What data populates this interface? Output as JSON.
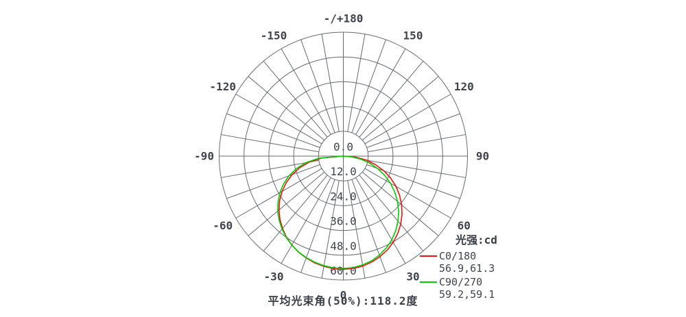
{
  "colors": {
    "grid": "#66696e",
    "label_text": "#3f434b",
    "c0_180": "#e81212",
    "c90_270": "#00cc00",
    "background": "#ffffff"
  },
  "legend": {
    "title": "光强:cd",
    "entries": [
      {
        "label": "C0/180",
        "values": "56.9,61.3",
        "color_key": "c0_180"
      },
      {
        "label": "C90/270",
        "values": "59.2,59.1",
        "color_key": "c90_270"
      }
    ]
  },
  "caption": "平均光束角(50%):118.2度",
  "chart_data": {
    "type": "line",
    "subtype": "polar-photometric",
    "title": "",
    "unit_label": "光强:cd",
    "orientation": "0-degrees-at-bottom, ±180 at top, negative angles left",
    "grid": true,
    "legend_position": "bottom-right",
    "r_axis": {
      "min": 0,
      "max": 60,
      "step": 12
    },
    "radial_ticks": [
      0,
      12,
      24,
      36,
      48,
      60
    ],
    "radial_tick_labels": [
      "0.0",
      "12.0",
      "24.0",
      "36.0",
      "48.0",
      "60.0"
    ],
    "angle_ticks": [
      {
        "deg": 180,
        "label": "-/+180"
      },
      {
        "deg": -150,
        "label": "-150"
      },
      {
        "deg": -120,
        "label": "-120"
      },
      {
        "deg": -90,
        "label": "-90"
      },
      {
        "deg": -60,
        "label": "-60"
      },
      {
        "deg": -30,
        "label": "-30"
      },
      {
        "deg": 0,
        "label": "0"
      },
      {
        "deg": 30,
        "label": "30"
      },
      {
        "deg": 60,
        "label": "60"
      },
      {
        "deg": 90,
        "label": "90"
      },
      {
        "deg": 120,
        "label": "120"
      },
      {
        "deg": 150,
        "label": "150"
      }
    ],
    "spoke_step_deg": 10,
    "angles_deg": [
      -90,
      -85,
      -80,
      -75,
      -70,
      -65,
      -60,
      -55,
      -50,
      -45,
      -40,
      -35,
      -30,
      -25,
      -20,
      -15,
      -10,
      -5,
      0,
      5,
      10,
      15,
      20,
      25,
      30,
      35,
      40,
      45,
      50,
      55,
      60,
      65,
      70,
      75,
      80,
      85,
      90
    ],
    "series": [
      {
        "name": "C0/180",
        "color_key": "c0_180",
        "peak_values_cd": "56.9,61.3",
        "intensity_cd": [
          0,
          10.4,
          16.7,
          21.9,
          26.4,
          30.5,
          34.2,
          37.6,
          40.6,
          43.3,
          45.7,
          47.9,
          49.7,
          51.3,
          52.5,
          53.5,
          54.2,
          54.7,
          54.8,
          54.6,
          54.1,
          53.1,
          51.8,
          50.2,
          48.2,
          45.8,
          43.1,
          40.1,
          36.8,
          33.2,
          29.4,
          25.2,
          20.9,
          16.2,
          11.3,
          6.1,
          0
        ]
      },
      {
        "name": "C90/270",
        "color_key": "c90_270",
        "peak_values_cd": "59.2,59.1",
        "intensity_cd": [
          0,
          12.0,
          18.4,
          23.5,
          28.0,
          31.9,
          35.4,
          38.5,
          41.4,
          43.9,
          46.1,
          48.1,
          49.8,
          51.2,
          52.3,
          53.2,
          53.9,
          54.3,
          54.4,
          54.2,
          53.5,
          52.5,
          51.0,
          49.1,
          46.8,
          44.1,
          41.1,
          37.8,
          34.2,
          30.3,
          26.3,
          22.0,
          17.7,
          13.2,
          8.7,
          4.2,
          0
        ]
      }
    ],
    "beam_angle_50pct_deg": 118.2
  }
}
